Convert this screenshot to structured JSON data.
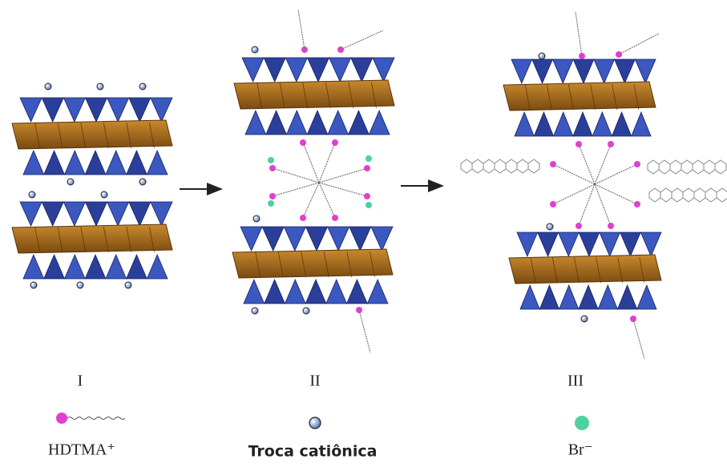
{
  "panels": [
    {
      "label": "I"
    },
    {
      "label": "II"
    },
    {
      "label": "III"
    }
  ],
  "legend": [
    {
      "label": "HDTMA⁺"
    },
    {
      "label": "Troca catiônica"
    },
    {
      "label": "Br⁻"
    }
  ]
}
